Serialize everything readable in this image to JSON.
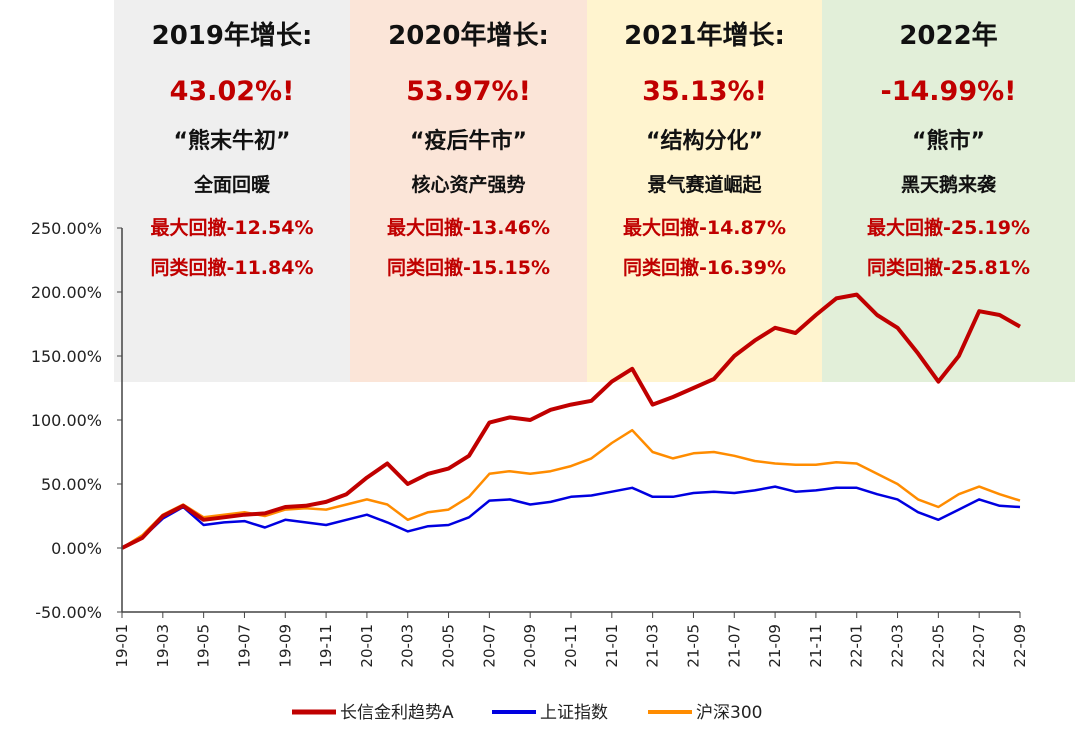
{
  "chart_data": {
    "type": "line",
    "title": "",
    "xlabel": "",
    "ylabel": "",
    "ylim": [
      -50,
      250
    ],
    "yticks": [
      "-50.00%",
      "0.00%",
      "50.00%",
      "100.00%",
      "150.00%",
      "200.00%",
      "250.00%"
    ],
    "ytick_values": [
      -50,
      0,
      50,
      100,
      150,
      200,
      250
    ],
    "xticks": [
      "19-01",
      "19-03",
      "19-05",
      "19-07",
      "19-09",
      "19-11",
      "20-01",
      "20-03",
      "20-05",
      "20-07",
      "20-09",
      "20-11",
      "21-01",
      "21-03",
      "21-05",
      "21-07",
      "21-09",
      "21-11",
      "22-01",
      "22-03",
      "22-05",
      "22-07",
      "22-09"
    ],
    "legend_position": "bottom",
    "grid": false,
    "series": [
      {
        "name": "长信金利趋势A",
        "color": "#c00000",
        "points": [
          [
            "19-01",
            0
          ],
          [
            "19-02",
            8
          ],
          [
            "19-03",
            25
          ],
          [
            "19-04",
            33
          ],
          [
            "19-05",
            22
          ],
          [
            "19-06",
            24
          ],
          [
            "19-07",
            26
          ],
          [
            "19-08",
            27
          ],
          [
            "19-09",
            32
          ],
          [
            "19-10",
            33
          ],
          [
            "19-11",
            36
          ],
          [
            "19-12",
            42
          ],
          [
            "20-01",
            55
          ],
          [
            "20-02",
            66
          ],
          [
            "20-03",
            50
          ],
          [
            "20-04",
            58
          ],
          [
            "20-05",
            62
          ],
          [
            "20-06",
            72
          ],
          [
            "20-07",
            98
          ],
          [
            "20-08",
            102
          ],
          [
            "20-09",
            100
          ],
          [
            "20-10",
            108
          ],
          [
            "20-11",
            112
          ],
          [
            "20-12",
            115
          ],
          [
            "21-01",
            130
          ],
          [
            "21-02",
            140
          ],
          [
            "21-03",
            112
          ],
          [
            "21-04",
            118
          ],
          [
            "21-05",
            125
          ],
          [
            "21-06",
            132
          ],
          [
            "21-07",
            150
          ],
          [
            "21-08",
            162
          ],
          [
            "21-09",
            172
          ],
          [
            "21-10",
            168
          ],
          [
            "21-11",
            182
          ],
          [
            "21-12",
            195
          ],
          [
            "22-01",
            198
          ],
          [
            "22-02",
            182
          ],
          [
            "22-03",
            172
          ],
          [
            "22-04",
            152
          ],
          [
            "22-05",
            130
          ],
          [
            "22-06",
            150
          ],
          [
            "22-07",
            185
          ],
          [
            "22-08",
            182
          ],
          [
            "22-09",
            173
          ]
        ]
      },
      {
        "name": "上证指数",
        "color": "#0000e0",
        "points": [
          [
            "19-01",
            0
          ],
          [
            "19-02",
            8
          ],
          [
            "19-03",
            23
          ],
          [
            "19-04",
            32
          ],
          [
            "19-05",
            18
          ],
          [
            "19-06",
            20
          ],
          [
            "19-07",
            21
          ],
          [
            "19-08",
            16
          ],
          [
            "19-09",
            22
          ],
          [
            "19-10",
            20
          ],
          [
            "19-11",
            18
          ],
          [
            "19-12",
            22
          ],
          [
            "20-01",
            26
          ],
          [
            "20-02",
            20
          ],
          [
            "20-03",
            13
          ],
          [
            "20-04",
            17
          ],
          [
            "20-05",
            18
          ],
          [
            "20-06",
            24
          ],
          [
            "20-07",
            37
          ],
          [
            "20-08",
            38
          ],
          [
            "20-09",
            34
          ],
          [
            "20-10",
            36
          ],
          [
            "20-11",
            40
          ],
          [
            "20-12",
            41
          ],
          [
            "21-01",
            44
          ],
          [
            "21-02",
            47
          ],
          [
            "21-03",
            40
          ],
          [
            "21-04",
            40
          ],
          [
            "21-05",
            43
          ],
          [
            "21-06",
            44
          ],
          [
            "21-07",
            43
          ],
          [
            "21-08",
            45
          ],
          [
            "21-09",
            48
          ],
          [
            "21-10",
            44
          ],
          [
            "21-11",
            45
          ],
          [
            "21-12",
            47
          ],
          [
            "22-01",
            47
          ],
          [
            "22-02",
            42
          ],
          [
            "22-03",
            38
          ],
          [
            "22-04",
            28
          ],
          [
            "22-05",
            22
          ],
          [
            "22-06",
            30
          ],
          [
            "22-07",
            38
          ],
          [
            "22-08",
            33
          ],
          [
            "22-09",
            32
          ]
        ]
      },
      {
        "name": "沪深300",
        "color": "#ff8c00",
        "points": [
          [
            "19-01",
            0
          ],
          [
            "19-02",
            10
          ],
          [
            "19-03",
            26
          ],
          [
            "19-04",
            34
          ],
          [
            "19-05",
            24
          ],
          [
            "19-06",
            26
          ],
          [
            "19-07",
            28
          ],
          [
            "19-08",
            25
          ],
          [
            "19-09",
            30
          ],
          [
            "19-10",
            31
          ],
          [
            "19-11",
            30
          ],
          [
            "19-12",
            34
          ],
          [
            "20-01",
            38
          ],
          [
            "20-02",
            34
          ],
          [
            "20-03",
            22
          ],
          [
            "20-04",
            28
          ],
          [
            "20-05",
            30
          ],
          [
            "20-06",
            40
          ],
          [
            "20-07",
            58
          ],
          [
            "20-08",
            60
          ],
          [
            "20-09",
            58
          ],
          [
            "20-10",
            60
          ],
          [
            "20-11",
            64
          ],
          [
            "20-12",
            70
          ],
          [
            "21-01",
            82
          ],
          [
            "21-02",
            92
          ],
          [
            "21-03",
            75
          ],
          [
            "21-04",
            70
          ],
          [
            "21-05",
            74
          ],
          [
            "21-06",
            75
          ],
          [
            "21-07",
            72
          ],
          [
            "21-08",
            68
          ],
          [
            "21-09",
            66
          ],
          [
            "21-10",
            65
          ],
          [
            "21-11",
            65
          ],
          [
            "21-12",
            67
          ],
          [
            "22-01",
            66
          ],
          [
            "22-02",
            58
          ],
          [
            "22-03",
            50
          ],
          [
            "22-04",
            38
          ],
          [
            "22-05",
            32
          ],
          [
            "22-06",
            42
          ],
          [
            "22-07",
            48
          ],
          [
            "22-08",
            42
          ],
          [
            "22-09",
            37
          ]
        ]
      }
    ]
  },
  "panels": [
    {
      "title": "2019年增长:",
      "return": "43.02%!",
      "theme": "“熊末牛初”",
      "desc": "全面回暖",
      "max_drawdown": "最大回撤-12.54%",
      "peer_drawdown": "同类回撤-11.84%",
      "bg_color": "#efefef"
    },
    {
      "title": "2020年增长:",
      "return": "53.97%!",
      "theme": "“疫后牛市”",
      "desc": "核心资产强势",
      "max_drawdown": "最大回撤-13.46%",
      "peer_drawdown": "同类回撤-15.15%",
      "bg_color": "#fbe5d8"
    },
    {
      "title": "2021年增长:",
      "return": "35.13%!",
      "theme": "“结构分化”",
      "desc": "景气赛道崛起",
      "max_drawdown": "最大回撤-14.87%",
      "peer_drawdown": "同类回撤-16.39%",
      "bg_color": "#fff4cf"
    },
    {
      "title": "2022年",
      "return": "-14.99%!",
      "theme": "“熊市”",
      "desc": "黑天鹅来袭",
      "max_drawdown": "最大回撤-25.19%",
      "peer_drawdown": "同类回撤-25.81%",
      "bg_color": "#e2efd9"
    }
  ]
}
